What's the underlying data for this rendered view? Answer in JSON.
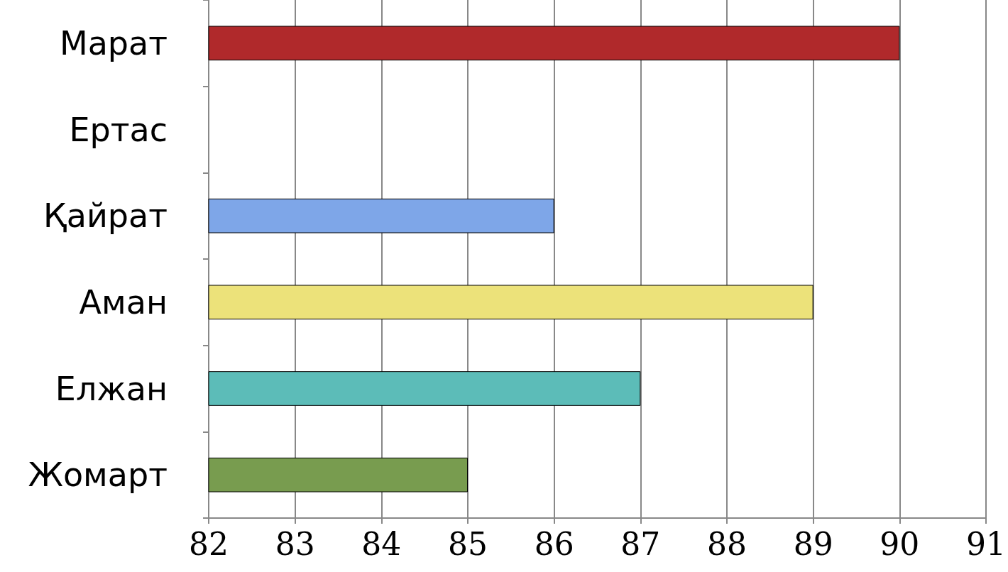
{
  "chart_data": {
    "type": "bar",
    "orientation": "horizontal",
    "categories": [
      "Марат",
      "Ертас",
      "Қайрат",
      "Аман",
      "Елжан",
      "Жомарт"
    ],
    "values": [
      90,
      null,
      86,
      89,
      87,
      85
    ],
    "colors": [
      "#b0292b",
      null,
      "#7ea6e8",
      "#ece27a",
      "#5cbcb8",
      "#789c4f"
    ],
    "xlim": [
      82,
      91
    ],
    "xticks": [
      82,
      83,
      84,
      85,
      86,
      87,
      88,
      89,
      90,
      91
    ],
    "grid": "x"
  }
}
